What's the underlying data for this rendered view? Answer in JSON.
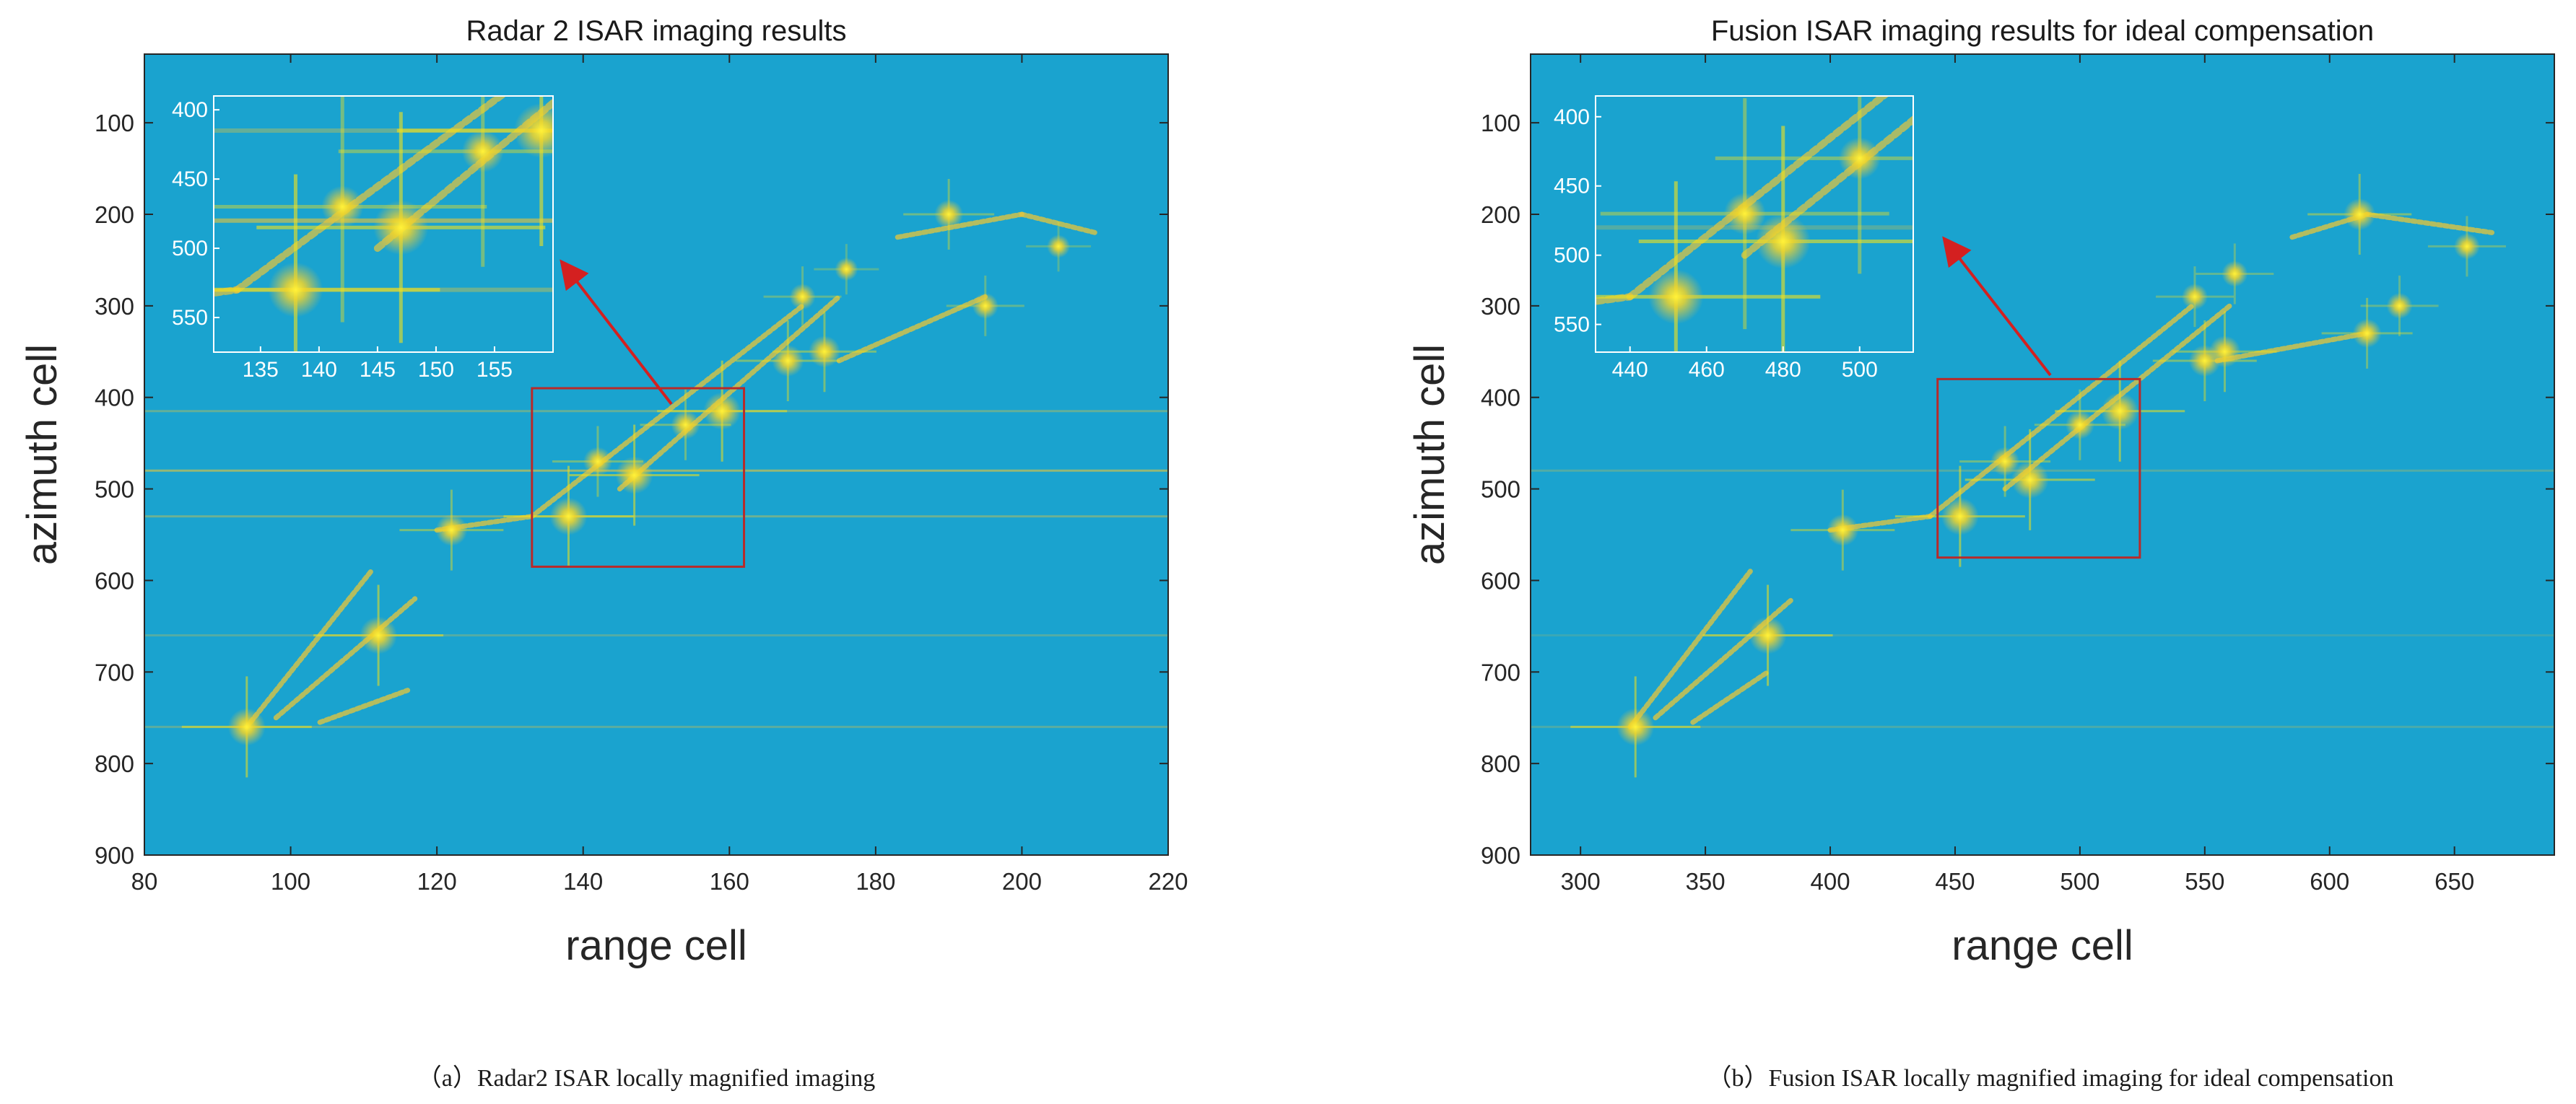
{
  "colors": {
    "background": "#1aa3cf",
    "hot": "#f2e21a",
    "mid": "#e8c53a",
    "zoom_box": "#b82a2a",
    "arrow": "#d42020",
    "inset_frame": "#ffffff"
  },
  "chart_data": [
    {
      "type": "heatmap",
      "title": "Radar 2 ISAR imaging results",
      "xlabel": "range cell",
      "ylabel": "azimuth cell",
      "xlim": [
        80,
        220
      ],
      "ylim": [
        900,
        25
      ],
      "xticks": [
        80,
        100,
        120,
        140,
        160,
        180,
        200,
        220
      ],
      "yticks": [
        100,
        200,
        300,
        400,
        500,
        600,
        700,
        800,
        900
      ],
      "caption": "（a）Radar2 ISAR locally magnified imaging",
      "zoom_box": {
        "x": [
          133,
          162
        ],
        "y": [
          390,
          585
        ]
      },
      "inset": {
        "xlim": [
          131,
          160
        ],
        "ylim": [
          575,
          390
        ],
        "xticks": [
          135,
          140,
          145,
          150,
          155
        ],
        "yticks": [
          400,
          450,
          500,
          550
        ]
      },
      "horizontal_streaks": [
        {
          "y": 415,
          "strength": 0.45
        },
        {
          "y": 480,
          "strength": 0.75
        },
        {
          "y": 530,
          "strength": 0.5
        },
        {
          "y": 660,
          "strength": 0.35
        },
        {
          "y": 760,
          "strength": 0.4
        }
      ],
      "scatterers": [
        {
          "x": 94,
          "y": 760,
          "intensity": 1.0
        },
        {
          "x": 112,
          "y": 660,
          "intensity": 1.0
        },
        {
          "x": 122,
          "y": 545,
          "intensity": 0.8
        },
        {
          "x": 138,
          "y": 530,
          "intensity": 1.0
        },
        {
          "x": 147,
          "y": 485,
          "intensity": 1.0
        },
        {
          "x": 159,
          "y": 415,
          "intensity": 1.0
        },
        {
          "x": 154,
          "y": 430,
          "intensity": 0.7
        },
        {
          "x": 142,
          "y": 470,
          "intensity": 0.7
        },
        {
          "x": 168,
          "y": 360,
          "intensity": 0.8
        },
        {
          "x": 173,
          "y": 350,
          "intensity": 0.8
        },
        {
          "x": 170,
          "y": 290,
          "intensity": 0.6
        },
        {
          "x": 176,
          "y": 260,
          "intensity": 0.5
        },
        {
          "x": 195,
          "y": 300,
          "intensity": 0.6
        },
        {
          "x": 190,
          "y": 200,
          "intensity": 0.7
        },
        {
          "x": 205,
          "y": 235,
          "intensity": 0.5
        }
      ],
      "ridges": [
        {
          "from": [
            94,
            760
          ],
          "to": [
            111,
            590
          ]
        },
        {
          "from": [
            98,
            750
          ],
          "to": [
            117,
            620
          ]
        },
        {
          "from": [
            104,
            755
          ],
          "to": [
            116,
            720
          ]
        },
        {
          "from": [
            133,
            530
          ],
          "to": [
            170,
            300
          ]
        },
        {
          "from": [
            145,
            500
          ],
          "to": [
            175,
            290
          ]
        },
        {
          "from": [
            175,
            360
          ],
          "to": [
            195,
            290
          ]
        },
        {
          "from": [
            183,
            225
          ],
          "to": [
            200,
            200
          ]
        },
        {
          "from": [
            200,
            200
          ],
          "to": [
            210,
            220
          ]
        },
        {
          "from": [
            120,
            545
          ],
          "to": [
            133,
            530
          ]
        }
      ]
    },
    {
      "type": "heatmap",
      "title": "Fusion ISAR imaging results for ideal compensation",
      "xlabel": "range cell",
      "ylabel": "azimuth cell",
      "xlim": [
        280,
        690
      ],
      "ylim": [
        900,
        25
      ],
      "xticks": [
        300,
        350,
        400,
        450,
        500,
        550,
        600,
        650
      ],
      "yticks": [
        100,
        200,
        300,
        400,
        500,
        600,
        700,
        800,
        900
      ],
      "caption": "（b）Fusion ISAR locally magnified imaging for ideal compensation",
      "zoom_box": {
        "x": [
          443,
          524
        ],
        "y": [
          380,
          575
        ]
      },
      "inset": {
        "xlim": [
          431,
          514
        ],
        "ylim": [
          570,
          385
        ],
        "xticks": [
          440,
          460,
          480,
          500
        ],
        "yticks": [
          400,
          450,
          500,
          550
        ]
      },
      "horizontal_streaks": [
        {
          "y": 480,
          "strength": 0.35
        },
        {
          "y": 660,
          "strength": 0.2
        },
        {
          "y": 760,
          "strength": 0.3
        }
      ],
      "scatterers": [
        {
          "x": 322,
          "y": 760,
          "intensity": 1.0
        },
        {
          "x": 375,
          "y": 660,
          "intensity": 1.0
        },
        {
          "x": 405,
          "y": 545,
          "intensity": 0.8
        },
        {
          "x": 452,
          "y": 530,
          "intensity": 1.0
        },
        {
          "x": 480,
          "y": 490,
          "intensity": 1.0
        },
        {
          "x": 516,
          "y": 415,
          "intensity": 1.0
        },
        {
          "x": 500,
          "y": 430,
          "intensity": 0.7
        },
        {
          "x": 470,
          "y": 470,
          "intensity": 0.7
        },
        {
          "x": 550,
          "y": 360,
          "intensity": 0.8
        },
        {
          "x": 558,
          "y": 350,
          "intensity": 0.8
        },
        {
          "x": 546,
          "y": 290,
          "intensity": 0.6
        },
        {
          "x": 562,
          "y": 265,
          "intensity": 0.6
        },
        {
          "x": 615,
          "y": 330,
          "intensity": 0.7
        },
        {
          "x": 628,
          "y": 300,
          "intensity": 0.6
        },
        {
          "x": 612,
          "y": 200,
          "intensity": 0.8
        },
        {
          "x": 655,
          "y": 235,
          "intensity": 0.6
        }
      ],
      "ridges": [
        {
          "from": [
            320,
            760
          ],
          "to": [
            368,
            590
          ]
        },
        {
          "from": [
            330,
            750
          ],
          "to": [
            385,
            620
          ]
        },
        {
          "from": [
            345,
            755
          ],
          "to": [
            375,
            700
          ]
        },
        {
          "from": [
            440,
            530
          ],
          "to": [
            545,
            300
          ]
        },
        {
          "from": [
            470,
            500
          ],
          "to": [
            560,
            300
          ]
        },
        {
          "from": [
            555,
            360
          ],
          "to": [
            615,
            330
          ]
        },
        {
          "from": [
            585,
            225
          ],
          "to": [
            615,
            200
          ]
        },
        {
          "from": [
            615,
            200
          ],
          "to": [
            665,
            220
          ]
        },
        {
          "from": [
            400,
            545
          ],
          "to": [
            440,
            530
          ]
        }
      ]
    }
  ]
}
